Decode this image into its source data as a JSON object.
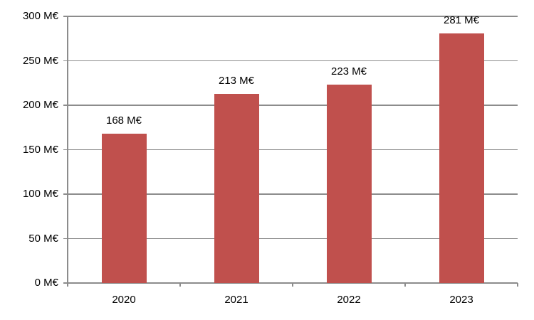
{
  "chart_data": {
    "type": "bar",
    "title": "",
    "xlabel": "",
    "ylabel": "",
    "categories": [
      "2020",
      "2021",
      "2022",
      "2023"
    ],
    "values": [
      168,
      213,
      223,
      281
    ],
    "bar_labels": [
      "168 M€",
      "213 M€",
      "223 M€",
      "281 M€"
    ],
    "unit": "M€",
    "ylim": [
      0,
      300
    ],
    "ytick_step": 50,
    "ytick_labels": [
      "0 M€",
      "50 M€",
      "100 M€",
      "150 M€",
      "200 M€",
      "250 M€",
      "300 M€"
    ],
    "grid": true,
    "legend": false,
    "colors": {
      "bar": "#C0504D",
      "gridline": "#8C8C8C",
      "axis": "#8C8C8C",
      "text": "#000000",
      "background": "#FFFFFF"
    }
  }
}
